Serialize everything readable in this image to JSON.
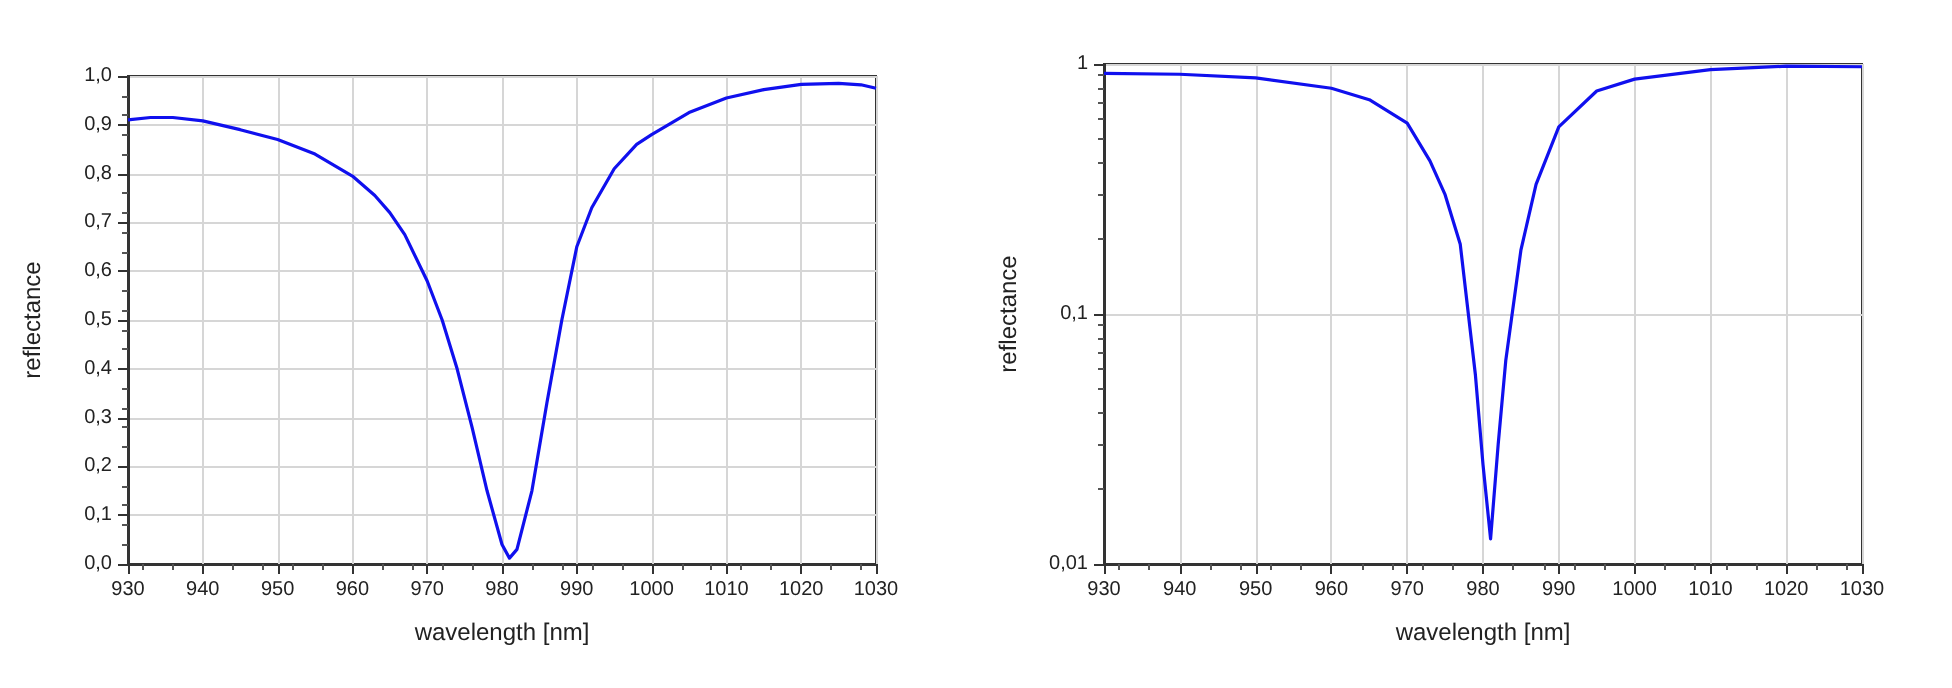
{
  "chart_data": [
    {
      "type": "line",
      "xlabel": "wavelength [nm]",
      "ylabel": "reflectance",
      "x": [
        930,
        933,
        936,
        940,
        945,
        950,
        955,
        960,
        963,
        965,
        967,
        970,
        972,
        974,
        976,
        978,
        980,
        981,
        982,
        984,
        986,
        988,
        990,
        992,
        995,
        998,
        1000,
        1005,
        1010,
        1015,
        1020,
        1025,
        1028,
        1030
      ],
      "series": [
        {
          "color": "#1010ee",
          "values": [
            0.91,
            0.915,
            0.915,
            0.908,
            0.89,
            0.87,
            0.84,
            0.795,
            0.755,
            0.72,
            0.675,
            0.58,
            0.5,
            0.4,
            0.28,
            0.15,
            0.04,
            0.012,
            0.03,
            0.15,
            0.33,
            0.5,
            0.65,
            0.73,
            0.81,
            0.86,
            0.88,
            0.925,
            0.955,
            0.972,
            0.983,
            0.985,
            0.982,
            0.975
          ]
        }
      ],
      "xlim": [
        930,
        1030
      ],
      "xticks": [
        930,
        940,
        950,
        960,
        970,
        980,
        990,
        1000,
        1010,
        1020,
        1030
      ],
      "ylim": [
        0,
        1
      ],
      "yticks": [
        {
          "value": 0,
          "label": "0,0"
        },
        {
          "value": 0.1,
          "label": "0,1"
        },
        {
          "value": 0.2,
          "label": "0,2"
        },
        {
          "value": 0.3,
          "label": "0,3"
        },
        {
          "value": 0.4,
          "label": "0,4"
        },
        {
          "value": 0.5,
          "label": "0,5"
        },
        {
          "value": 0.6,
          "label": "0,6"
        },
        {
          "value": 0.7,
          "label": "0,7"
        },
        {
          "value": 0.8,
          "label": "0,8"
        },
        {
          "value": 0.9,
          "label": "0,9"
        },
        {
          "value": 1,
          "label": "1,0"
        }
      ],
      "grid": true,
      "line_style": "solid",
      "marker": "none"
    },
    {
      "type": "line",
      "xlabel": "wavelength [nm]",
      "ylabel": "reflectance",
      "log": "y",
      "x": [
        930,
        940,
        950,
        960,
        965,
        970,
        973,
        975,
        977,
        979,
        980,
        981,
        982,
        983,
        985,
        987,
        990,
        995,
        1000,
        1010,
        1020,
        1030
      ],
      "series": [
        {
          "color": "#1010ee",
          "values": [
            0.918,
            0.91,
            0.88,
            0.8,
            0.72,
            0.58,
            0.41,
            0.3,
            0.19,
            0.057,
            0.025,
            0.0126,
            0.03,
            0.065,
            0.18,
            0.33,
            0.56,
            0.78,
            0.87,
            0.95,
            0.98,
            0.975
          ]
        }
      ],
      "xlim": [
        930,
        1030
      ],
      "xticks": [
        930,
        940,
        950,
        960,
        970,
        980,
        990,
        1000,
        1010,
        1020,
        1030
      ],
      "ylim": [
        0.01,
        1
      ],
      "yticks": [
        {
          "value": 0.01,
          "label": "0,01"
        },
        {
          "value": 0.1,
          "label": "0,1"
        },
        1
      ],
      "grid": true,
      "line_style": "solid",
      "marker": "none"
    }
  ]
}
